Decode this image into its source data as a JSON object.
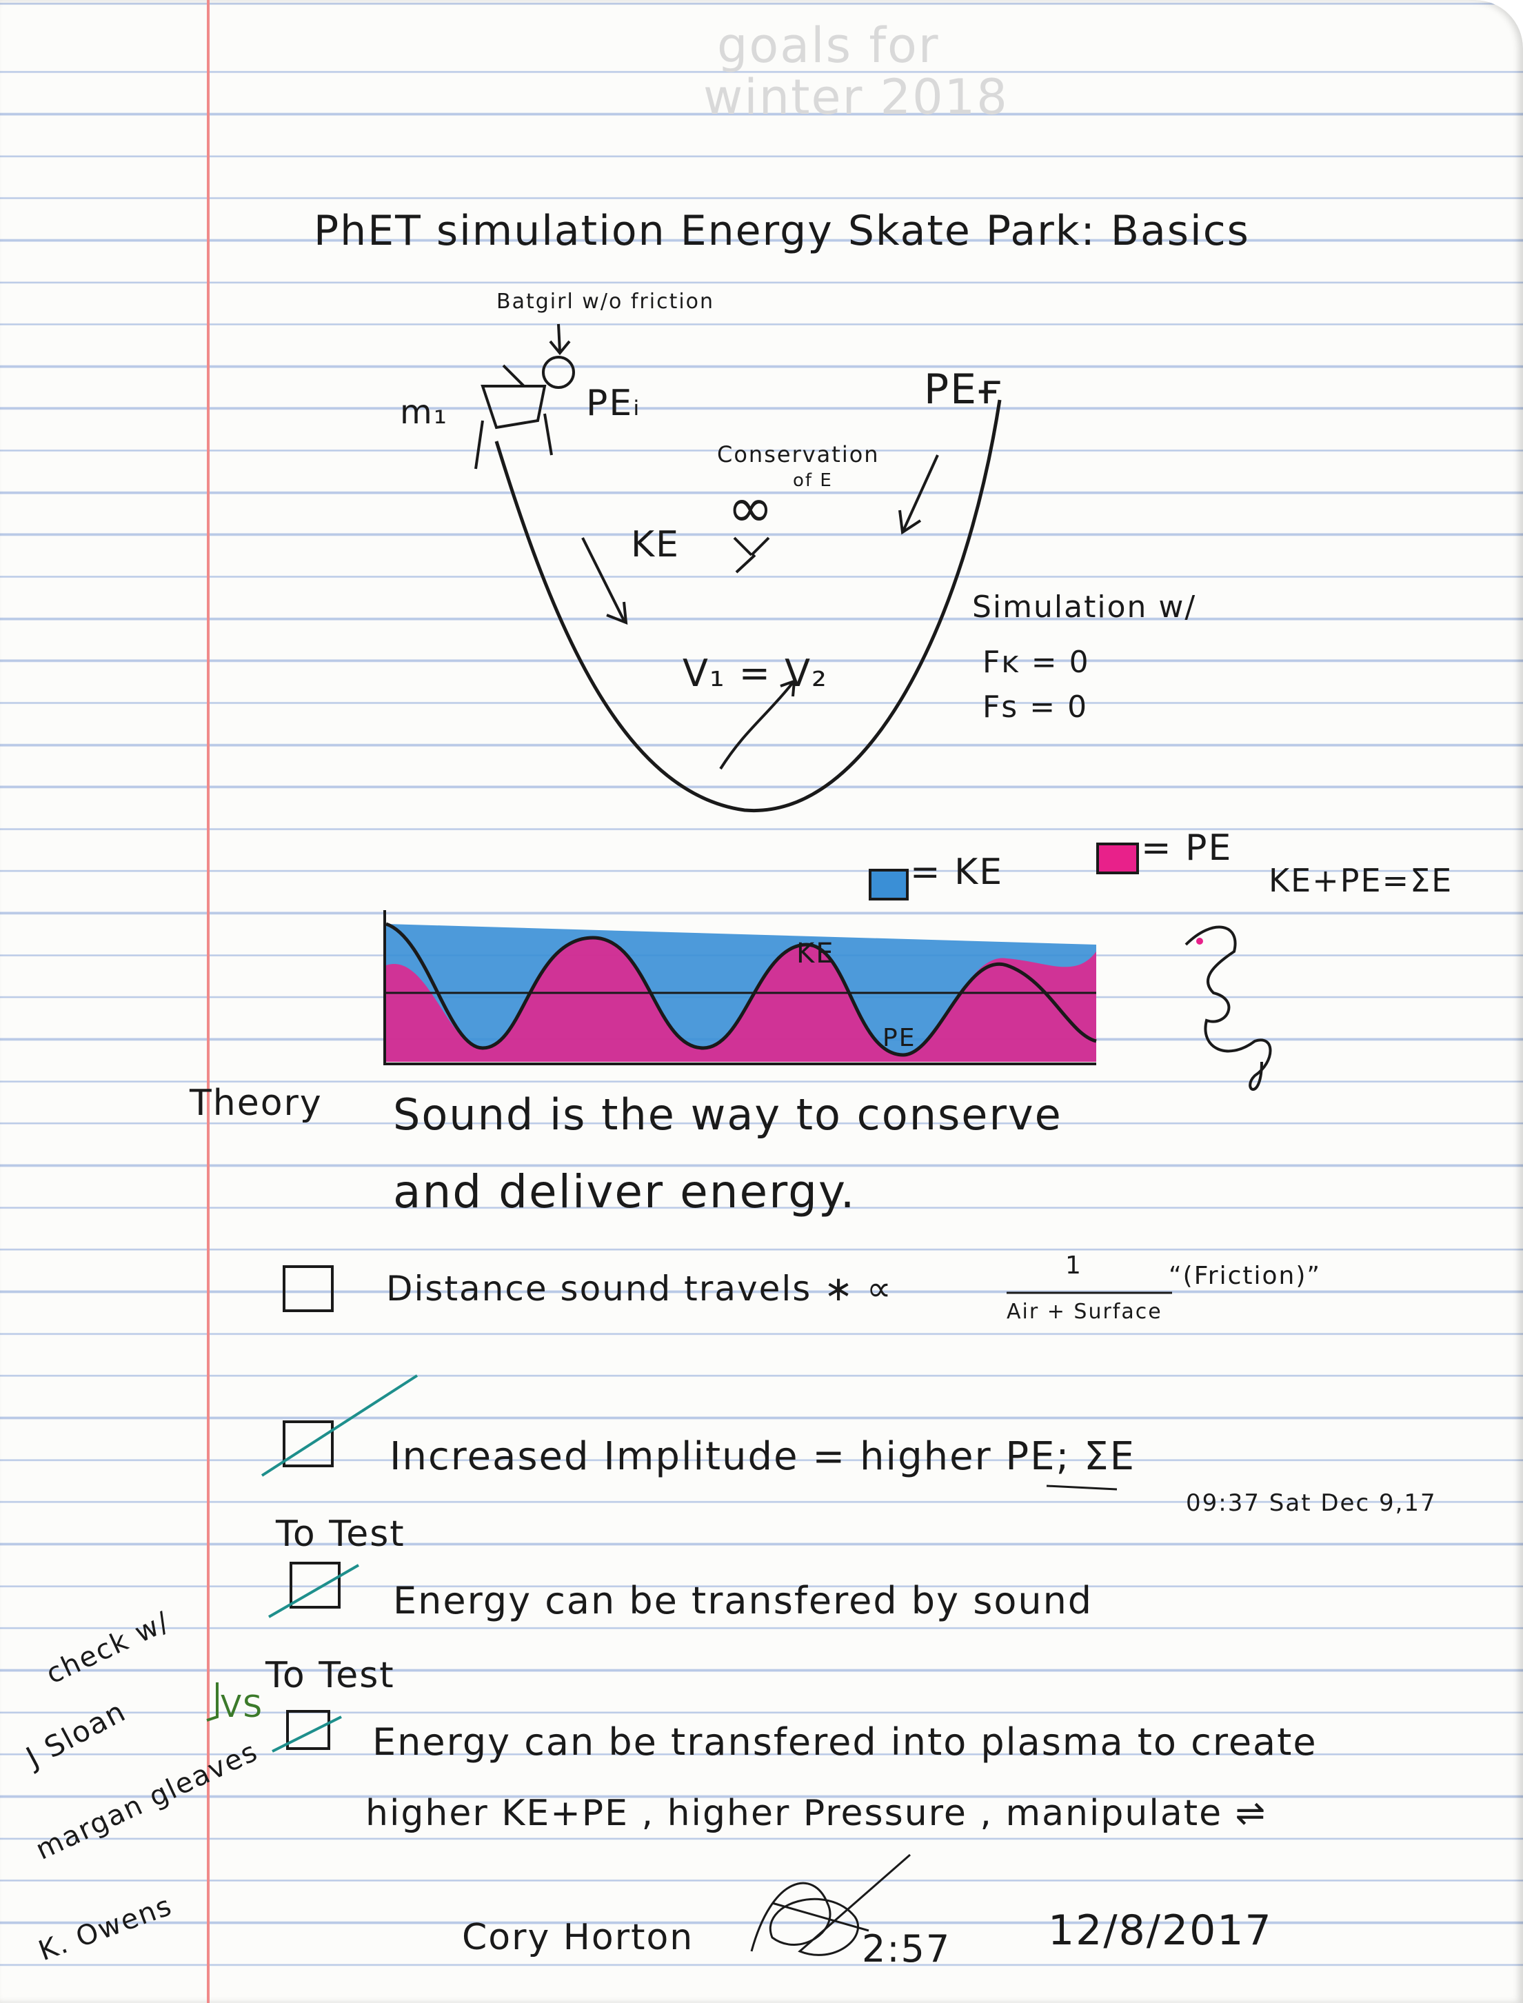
{
  "ghost": {
    "line1": "goals for",
    "line2": "winter 2018"
  },
  "title": "PhET simulation Energy Skate Park: Basics",
  "diagram": {
    "batgirl_label": "Batgirl w/o friction",
    "m1": "m₁",
    "pe_i": "PEᵢ",
    "pe_f": "PEғ",
    "conservation": "Conservation",
    "of_e": "of E",
    "infinity": "∞",
    "ke": "KE",
    "velocity_eq": "V₁ = V₂",
    "sim_title": "Simulation w/",
    "fk": "Fᴋ = 0",
    "fs": "Fꜱ = 0"
  },
  "legend": {
    "ke_label": "= KE",
    "pe_label": "= PE",
    "ke_color": "#3a8fd6",
    "pe_color": "#e8218a",
    "sum_eq": "KE+PE=ΣE"
  },
  "wave": {
    "ke_label": "KE",
    "pe_label": "PE"
  },
  "theory": {
    "label": "Theory",
    "line1": "Sound is the way to conserve",
    "line2": "and deliver energy."
  },
  "items": [
    {
      "text": "Distance sound travels ∗ ∝",
      "fraction_num": "1",
      "fraction_den": "Air + Surface",
      "fraction_note": "“(Friction)”"
    },
    {
      "text": "Increased Implitude = higher PE; ΣE",
      "timestamp": "09:37 Sat Dec 9,17"
    },
    {
      "prefix": "To Test",
      "text": "Energy can be transfered by sound"
    },
    {
      "prefix": "To Test",
      "text": "Energy can be transfered into plasma to create",
      "text2": "higher KE+PE , higher Pressure , manipulate ⇌"
    }
  ],
  "side_notes": {
    "check_with": "check w/",
    "vs": "VS",
    "people": [
      "J Sloan",
      "margan gleaves",
      "K. Owens"
    ]
  },
  "footer": {
    "name": "Cory Horton",
    "time": "2:57",
    "date": "12/8/2017"
  }
}
